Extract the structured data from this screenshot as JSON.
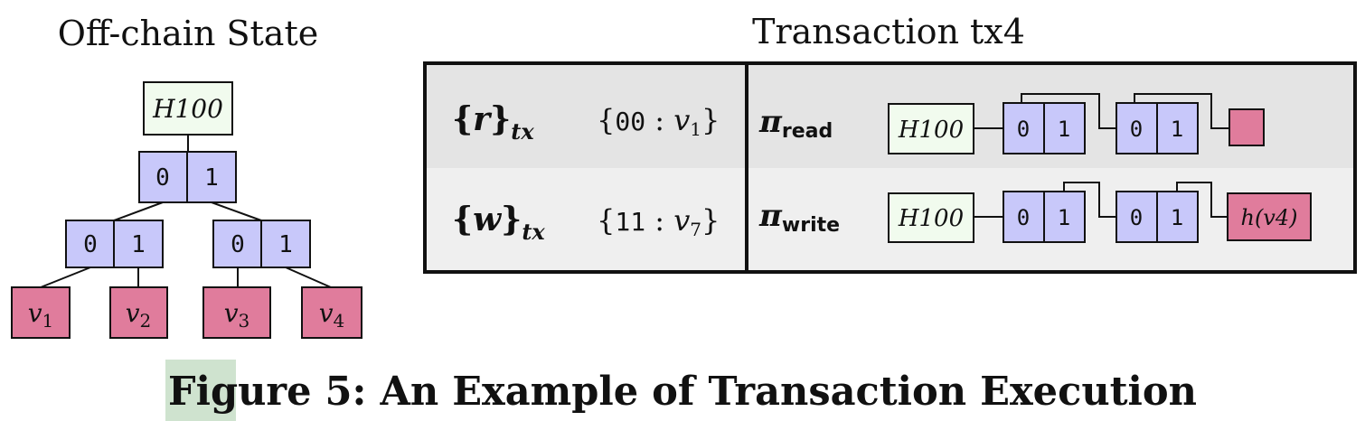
{
  "offchain": {
    "title": "Off-chain State",
    "root": "H100",
    "level1": [
      "0",
      "1"
    ],
    "level2_left": [
      "0",
      "1"
    ],
    "level2_right": [
      "0",
      "1"
    ],
    "leaves": [
      "v1",
      "v2",
      "v3",
      "v4"
    ]
  },
  "transaction": {
    "title": "Transaction tx4",
    "rows": [
      {
        "set_label": "{r}tx",
        "set_value": "{00 : v1}",
        "proof_label": "πread",
        "path_root": "H100",
        "node_a": [
          "0",
          "1"
        ],
        "node_b": [
          "0",
          "1"
        ],
        "terminal": ""
      },
      {
        "set_label": "{w}tx",
        "set_value": "{11 : v7}",
        "proof_label": "πwrite",
        "path_root": "H100",
        "node_a": [
          "0",
          "1"
        ],
        "node_b": [
          "0",
          "1"
        ],
        "terminal": "h(v4)"
      }
    ]
  },
  "caption": {
    "text": "Figure 5: An Example of Transaction Execution"
  },
  "colors": {
    "root_fill": "#f1fbee",
    "node_fill": "#c8c8fa",
    "leaf_fill": "#e07c9c",
    "row1_fill": "#e4e4e4",
    "row2_fill": "#efefef",
    "caption_highlight": "#cfe3cf"
  }
}
